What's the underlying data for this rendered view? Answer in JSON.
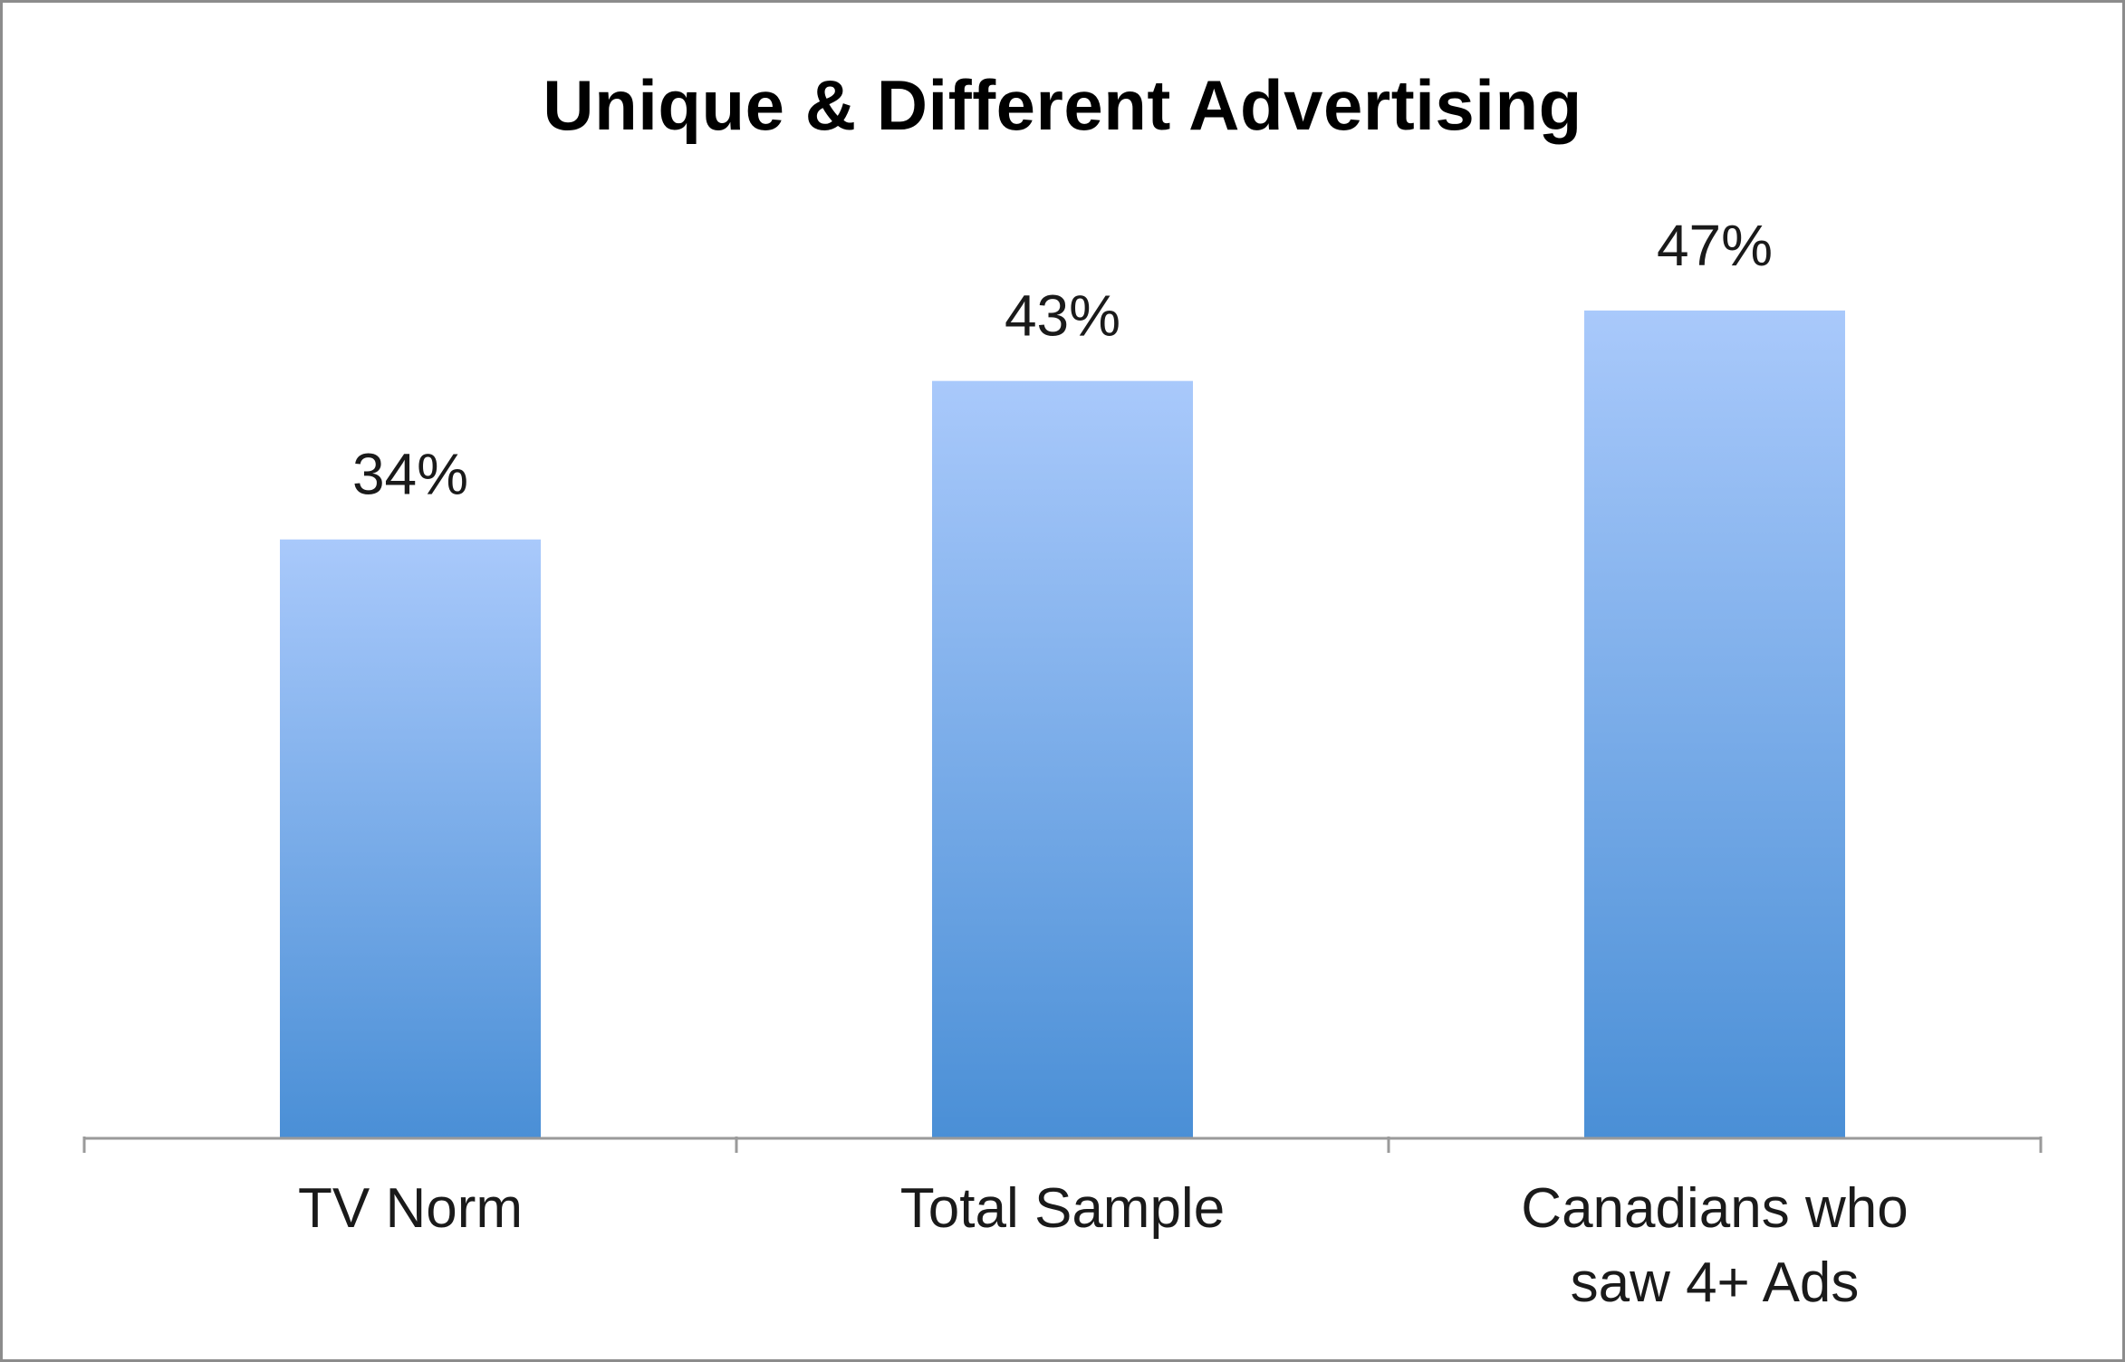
{
  "chart_data": {
    "type": "bar",
    "title": "Unique & Different Advertising",
    "categories": [
      "TV Norm",
      "Total Sample",
      "Canadians who saw 4+ Ads"
    ],
    "values": [
      34,
      43,
      47
    ],
    "value_labels": [
      "34%",
      "43%",
      "47%"
    ],
    "xlabel": "",
    "ylabel": "",
    "ylim": [
      0,
      55
    ],
    "grid": false,
    "legend": "none",
    "colors": {
      "bar_top": "#a9c9fb",
      "bar_bottom": "#4a8fd6",
      "axis": "#9a9a9a",
      "text": "#1a1a1a"
    }
  }
}
